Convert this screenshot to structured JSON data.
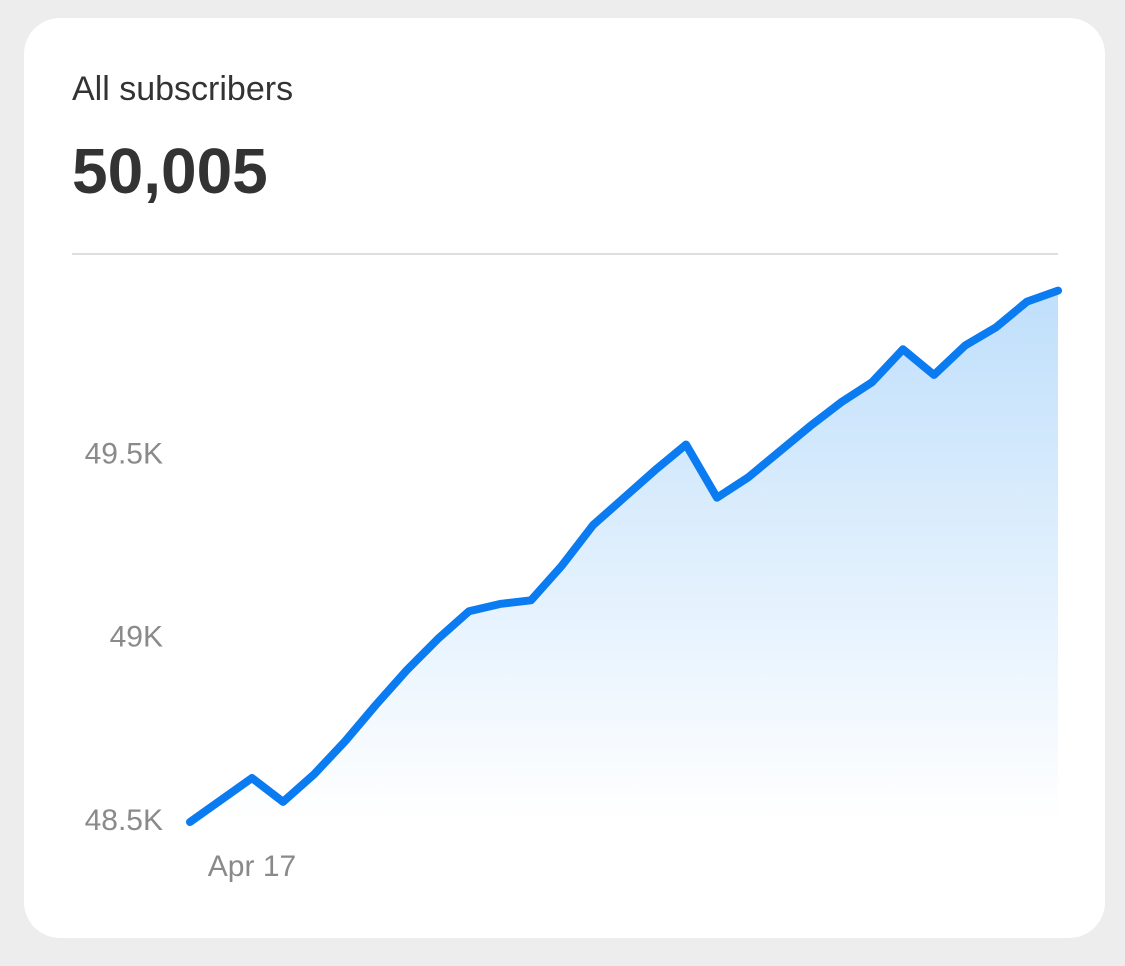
{
  "chart_data": {
    "type": "line",
    "title": "All subscribers",
    "headline": "50,005",
    "categories": [
      null,
      null,
      "Apr 17",
      null,
      null,
      null,
      null,
      null,
      null,
      null,
      null,
      null,
      null,
      null,
      null,
      null,
      null,
      null,
      null,
      null,
      null,
      null,
      null,
      null,
      null,
      null,
      null,
      null,
      null
    ],
    "series": [
      {
        "color": "#0a7bf0",
        "values": [
          48500,
          48560,
          48620,
          48555,
          48630,
          48720,
          48820,
          48915,
          49000,
          49075,
          49095,
          49105,
          49200,
          49310,
          49385,
          49460,
          49530,
          49385,
          49440,
          49510,
          49580,
          49645,
          49700,
          49790,
          49720,
          49800,
          49850,
          49920,
          49950
        ]
      }
    ],
    "ylim": [
      48500,
      50050
    ],
    "yticks": [
      {
        "value": 48500,
        "label": "48.5K"
      },
      {
        "value": 49000,
        "label": "49K"
      },
      {
        "value": 49500,
        "label": "49.5K"
      }
    ],
    "area": true
  }
}
